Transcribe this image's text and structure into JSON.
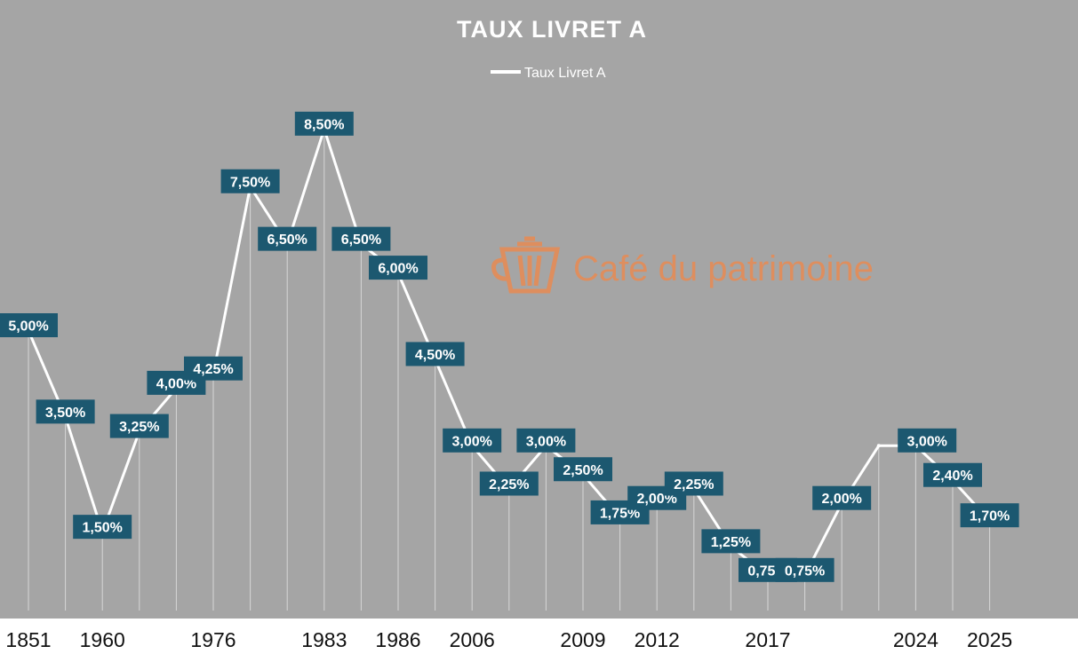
{
  "colors": {
    "plot_background": "#a5a5a5",
    "line": "#ffffff",
    "label_box": "#1c5870",
    "label_text": "#ffffff",
    "watermark": "#e98a52",
    "axis_background": "#ffffff"
  },
  "watermark": {
    "text": "Café du patrimoine",
    "icon": "coffee-cup-icon"
  },
  "chart_data": {
    "type": "line",
    "title": "TAUX LIVRET A",
    "legend": {
      "position": "top-center",
      "entries": [
        "Taux Livret A"
      ]
    },
    "xlabel": "",
    "ylabel": "",
    "ylim": [
      0,
      10
    ],
    "grid": false,
    "x_tick_labels": [
      "1851",
      "1960",
      "1976",
      "1983",
      "1986",
      "2006",
      "2009",
      "2012",
      "2017",
      "2024",
      "2025"
    ],
    "series": [
      {
        "name": "Taux Livret A",
        "values": [
          5.0,
          3.5,
          1.5,
          3.25,
          4.0,
          4.25,
          7.5,
          6.5,
          8.5,
          6.5,
          6.0,
          4.5,
          3.0,
          2.25,
          3.0,
          2.5,
          1.75,
          2.0,
          2.25,
          1.25,
          0.75,
          0.75,
          2.0,
          3.0,
          3.0,
          2.4,
          1.7
        ],
        "data_labels": [
          "5,00%",
          "3,50%",
          "1,50%",
          "3,25%",
          "4,00%",
          "4,25%",
          "7,50%",
          "6,50%",
          "8,50%",
          "6,50%",
          "6,00%",
          "4,50%",
          "3,00%",
          "2,25%",
          "3,00%",
          "2,50%",
          "1,75%",
          "2,00%",
          "2,25%",
          "1,25%",
          "0,75%",
          "0,75%",
          "2,00%",
          "",
          "3,00%",
          "2,40%",
          "1,70%"
        ]
      }
    ]
  }
}
